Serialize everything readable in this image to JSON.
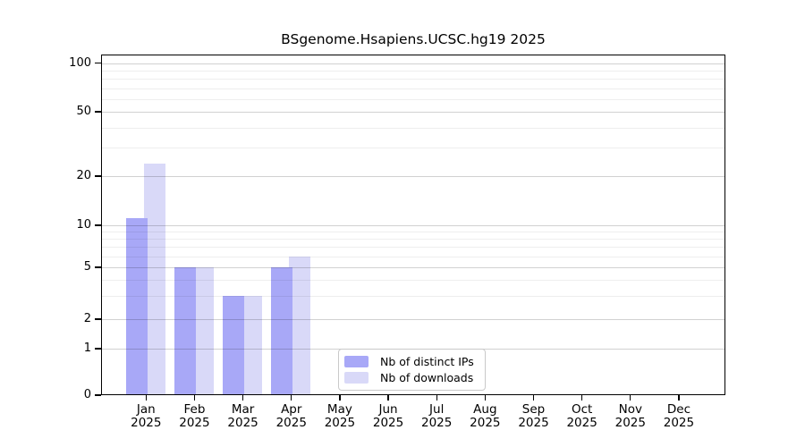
{
  "title": "BSgenome.Hsapiens.UCSC.hg19 2025",
  "chart_data": {
    "type": "bar",
    "title": "BSgenome.Hsapiens.UCSC.hg19 2025",
    "year": "2025",
    "categories": [
      "Jan",
      "Feb",
      "Mar",
      "Apr",
      "May",
      "Jun",
      "Jul",
      "Aug",
      "Sep",
      "Oct",
      "Nov",
      "Dec"
    ],
    "series": [
      {
        "name": "Nb of distinct IPs",
        "color": "#a8a8f7",
        "values": [
          11,
          5,
          3,
          5,
          0,
          0,
          0,
          0,
          0,
          0,
          0,
          0
        ]
      },
      {
        "name": "Nb of downloads",
        "color": "#d9d9f8",
        "values": [
          24,
          5,
          3,
          6,
          0,
          0,
          0,
          0,
          0,
          0,
          0,
          0
        ]
      }
    ],
    "yscale": "log1p-like",
    "ylim": [
      0,
      100
    ],
    "yticks": [
      0,
      1,
      2,
      5,
      10,
      20,
      50,
      100
    ],
    "ytick_labels": [
      "0",
      "1",
      "2",
      "5",
      "10",
      "20",
      "50",
      "100"
    ],
    "minor_ticks": [
      3,
      4,
      6,
      7,
      8,
      9,
      30,
      40,
      60,
      70,
      80,
      90
    ],
    "grid": true,
    "legend_position": "bottom-center-inside",
    "background_color": "#ffffff",
    "axis_color": "#000000"
  }
}
